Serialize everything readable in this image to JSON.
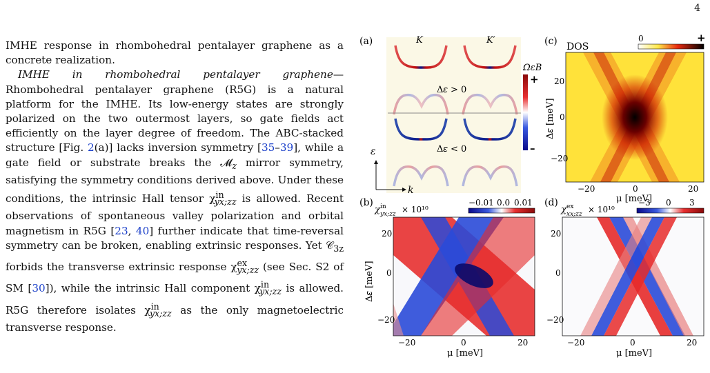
{
  "page_number": "4",
  "text": {
    "p0": "IMHE response in rhombohedral pentalayer graphene as a concrete realization.",
    "p1_head": "IMHE in rhombohedral pentalayer graphene",
    "p1_dash": "—",
    "p1_a": "Rhombohedral pentalayer graphene (R5G) is a natural platform for the IMHE. Its low-energy states are strongly polarized on the two outermost layers, so gate fields act efficiently on the layer degree of freedom. The ABC-stacked structure [Fig. ",
    "p1_fig": "2",
    "p1_b": "(a)] lacks inversion symmetry [",
    "cite1": "35",
    "cite1_dash": "–",
    "cite2": "39",
    "p1_c": "], while a gate field or substrate breaks the 𝓜",
    "p1_c_sub": "z",
    "p1_d": " mirror symmetry, satisfying the symmetry conditions derived above. Under these conditions, the intrinsic Hall tensor χ",
    "chi_in_sup": "in",
    "chi_yxzz_sub": "yx;zz",
    "p1_e": " is allowed. Recent observations of spontaneous valley polarization and orbital magnetism in R5G [",
    "cite3": "23",
    "cite_comma": ", ",
    "cite4": "40",
    "p1_f": "] further indicate that time-reversal symmetry can be broken, enabling extrinsic responses. Yet 𝒞",
    "c3_sub": "3z",
    "p1_g": " forbids the transverse extrinsic response χ",
    "chi_ex_sup": "ex",
    "p1_h": " (see Sec. S2 of SM [",
    "cite5": "30",
    "p1_i": "]), while the intrinsic Hall component χ",
    "p1_j": " is allowed. R5G therefore isolates χ",
    "p1_k": " as the only magnetoelectric transverse response."
  },
  "figure": {
    "panel_a": {
      "label": "(a)",
      "valley_K": "K",
      "valley_Kp": "K′",
      "delta_pos": "Δ𝜀 > 0",
      "delta_neg": "Δ𝜀 < 0",
      "colorbar_label": "Ω𝜀B",
      "colorbar_plus": "+",
      "colorbar_minus": "–",
      "axis_eps": "ε",
      "axis_k": "k",
      "colors": {
        "pos": "#d01010",
        "neg": "#0a1a8a",
        "bg": "#fbf8e6"
      }
    },
    "panel_b": {
      "label": "(b)",
      "quantity": "χ",
      "sup": "in",
      "sub": "yx;zz",
      "scale": "× 10¹⁰",
      "cbar_ticks": [
        "−0.01",
        "0.0",
        "0.01"
      ],
      "xlabel": "μ [meV]",
      "ylabel": "Δ𝜀 [meV]",
      "xticks": [
        "−20",
        "0",
        "20"
      ],
      "yticks": [
        "20",
        "0",
        "−20"
      ]
    },
    "panel_c": {
      "label": "(c)",
      "title": "DOS",
      "cbar_ticks": [
        "0",
        "+"
      ],
      "xlabel": "μ [meV]",
      "ylabel": "Δ𝜀 [meV]",
      "xticks": [
        "−20",
        "0",
        "20"
      ],
      "yticks": [
        "20",
        "0",
        "−20"
      ]
    },
    "panel_d": {
      "label": "(d)",
      "quantity": "χ",
      "sup": "ex",
      "sub": "xx;zz",
      "scale": "× 10¹⁰",
      "cbar_ticks": [
        "−3",
        "0",
        "3"
      ],
      "xlabel": "μ [meV]",
      "xticks": [
        "−20",
        "0",
        "20"
      ],
      "yticks": [
        "20",
        "0",
        "−20"
      ]
    }
  }
}
